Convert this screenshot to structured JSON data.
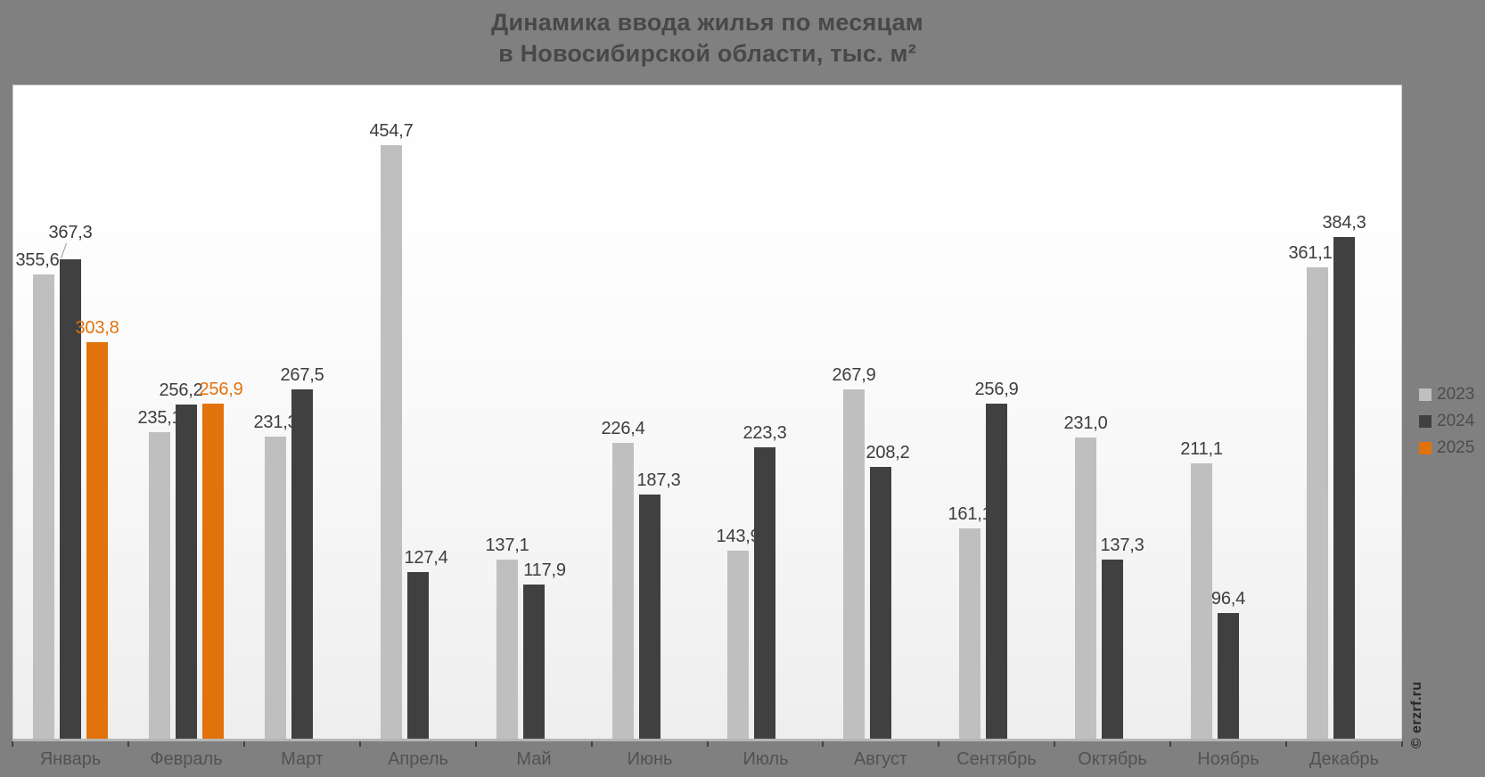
{
  "title": {
    "line1": "Динамика ввода жилья по месяцам",
    "line2": "в Новосибирской области, тыс. м²"
  },
  "watermark": "© erzrf.ru",
  "colors": {
    "background": "#808080",
    "plot_background_top": "#ffffff",
    "plot_background_bottom": "#eeeeee",
    "bar_2023": "#bfbfbf",
    "bar_2024": "#404040",
    "bar_2025": "#e2720c",
    "value_label_dark": "#3d3d3d",
    "value_label_orange": "#e2720c",
    "axis_line": "#b5b5b5",
    "tick": "#414141",
    "month_label": "#525252",
    "legend_text": "#4c4c4c",
    "title_text": "#484848"
  },
  "chart_data": {
    "type": "bar",
    "title": "Динамика ввода жилья по месяцам в Новосибирской области, тыс. м²",
    "categories": [
      "Январь",
      "Февраль",
      "Март",
      "Апрель",
      "Май",
      "Июнь",
      "Июль",
      "Август",
      "Сентябрь",
      "Октябрь",
      "Ноябрь",
      "Декабрь"
    ],
    "series": [
      {
        "name": "2023",
        "color": "#bfbfbf",
        "values": [
          355.6,
          235.1,
          231.3,
          454.7,
          137.1,
          226.4,
          143.9,
          267.9,
          161.1,
          231.0,
          211.1,
          361.1
        ]
      },
      {
        "name": "2024",
        "color": "#404040",
        "values": [
          367.3,
          256.2,
          267.5,
          127.4,
          117.9,
          187.3,
          223.3,
          208.2,
          256.9,
          137.3,
          96.4,
          384.3
        ]
      },
      {
        "name": "2025",
        "color": "#e2720c",
        "values": [
          303.8,
          256.9,
          null,
          null,
          null,
          null,
          null,
          null,
          null,
          null,
          null,
          null
        ]
      }
    ],
    "value_label_format": "comma-decimal-1",
    "xlabel": "",
    "ylabel": "тыс. м²",
    "ylim": [
      0,
      470
    ],
    "grid": false,
    "legend_position": "right"
  }
}
